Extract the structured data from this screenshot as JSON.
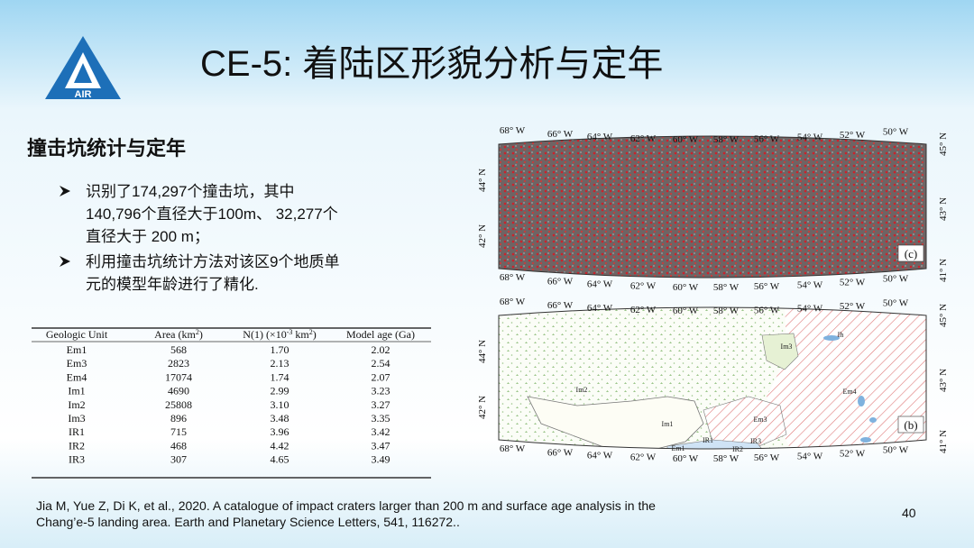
{
  "header": {
    "title": "CE-5: 着陆区形貌分析与定年",
    "logo_text": "AIR"
  },
  "section": {
    "heading": "撞击坑统计与定年",
    "bullets": [
      [
        "识别了174,297个撞击坑，其中",
        "140,796个直径大于100m、 32,277个",
        "直径大于 200 m；"
      ],
      [
        "利用撞击坑统计方法对该区9个地质单",
        "元的模型年龄进行了精化."
      ]
    ]
  },
  "table": {
    "header": [
      [
        "Geologic Unit"
      ],
      [
        "Area (km",
        "2",
        ")"
      ],
      [
        "N(1) (×10",
        "-3",
        " km",
        "2",
        ")"
      ],
      [
        "Model age (Ga)"
      ]
    ],
    "rows": [
      [
        "Em1",
        "568",
        "1.70",
        "2.02"
      ],
      [
        "Em3",
        "2823",
        "2.13",
        "2.54"
      ],
      [
        "Em4",
        "17074",
        "1.74",
        "2.07"
      ],
      [
        "Im1",
        "4690",
        "2.99",
        "3.23"
      ],
      [
        "Im2",
        "25808",
        "3.10",
        "3.27"
      ],
      [
        "Im3",
        "896",
        "3.48",
        "3.35"
      ],
      [
        "IR1",
        "715",
        "3.96",
        "3.42"
      ],
      [
        "IR2",
        "468",
        "4.42",
        "3.47"
      ],
      [
        "IR3",
        "307",
        "4.65",
        "3.49"
      ]
    ]
  },
  "maps": [
    {
      "panel": "(c)",
      "top_lon": [
        "68° W",
        "66° W",
        "64° W",
        "62° W",
        "60° W",
        "58° W",
        "56° W",
        "54° W",
        "52° W",
        "50° W"
      ],
      "bottom_lon": [
        "68° W",
        "66° W",
        "64° W",
        "62° W",
        "60° W",
        "58° W",
        "56° W",
        "54° W",
        "52° W",
        "50° W"
      ],
      "left_lat": [
        "44° N",
        "42° N"
      ],
      "right_lat": [
        "45° N",
        "43° N",
        "41° N"
      ]
    },
    {
      "panel": "(b)",
      "top_lon": [
        "68° W",
        "66° W",
        "64° W",
        "62° W",
        "60° W",
        "58° W",
        "56° W",
        "54° W",
        "52° W",
        "50° W"
      ],
      "bottom_lon": [
        "68° W",
        "66° W",
        "64° W",
        "62° W",
        "60° W",
        "58° W",
        "56° W",
        "54° W",
        "52° W",
        "50° W"
      ],
      "left_lat": [
        "44° N",
        "42° N"
      ],
      "right_lat": [
        "45° N",
        "43° N",
        "41° N"
      ],
      "units": [
        "Im3",
        "Ih",
        "Im2",
        "Em4",
        "Im1",
        "Em3",
        "IR1",
        "IR3",
        "Em1",
        "IR2"
      ]
    }
  ],
  "citation": [
    "Jia M, Yue Z, Di K, et al., 2020. A catalogue of impact craters larger than 200 m and surface age analysis in the",
    "Chang’e-5 landing area. Earth and Planetary Science Letters, 541, 116272.."
  ],
  "page_number": "40"
}
